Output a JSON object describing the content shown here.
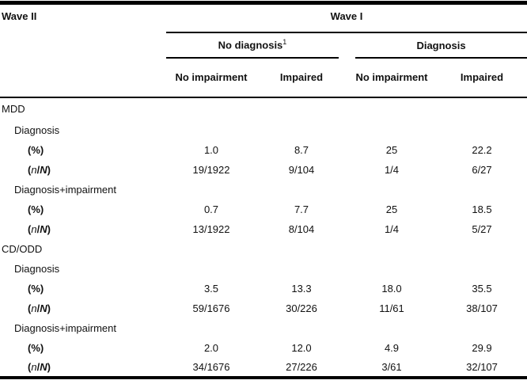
{
  "colors": {
    "text": "#111111",
    "rule": "#000000",
    "background": "#ffffff"
  },
  "table": {
    "stub_header": "Wave II",
    "span_header": "Wave I",
    "groups": [
      {
        "label": "No diagnosis",
        "footnote_marker": "1"
      },
      {
        "label": "Diagnosis",
        "footnote_marker": ""
      }
    ],
    "col_headers": [
      "No impairment",
      "Impaired",
      "No impairment",
      "Impaired"
    ],
    "rows": [
      {
        "label": "MDD",
        "indent": 0,
        "metric": false,
        "math": false,
        "values": [
          "",
          "",
          "",
          ""
        ]
      },
      {
        "label": "Diagnosis",
        "indent": 1,
        "metric": false,
        "math": false,
        "values": [
          "",
          "",
          "",
          ""
        ]
      },
      {
        "label": "(%)",
        "indent": 2,
        "metric": true,
        "math": false,
        "values": [
          "1.0",
          "8.7",
          "25",
          "22.2"
        ]
      },
      {
        "label": "(n/N)",
        "indent": 2,
        "metric": true,
        "math": true,
        "values": [
          "19/1922",
          "9/104",
          "1/4",
          "6/27"
        ]
      },
      {
        "label": "Diagnosis+impairment",
        "indent": 1,
        "metric": false,
        "math": false,
        "values": [
          "",
          "",
          "",
          ""
        ]
      },
      {
        "label": "(%)",
        "indent": 2,
        "metric": true,
        "math": false,
        "values": [
          "0.7",
          "7.7",
          "25",
          "18.5"
        ]
      },
      {
        "label": "(n/N)",
        "indent": 2,
        "metric": true,
        "math": true,
        "values": [
          "13/1922",
          "8/104",
          "1/4",
          "5/27"
        ]
      },
      {
        "label": "CD/ODD",
        "indent": 0,
        "metric": false,
        "math": false,
        "values": [
          "",
          "",
          "",
          ""
        ]
      },
      {
        "label": "Diagnosis",
        "indent": 1,
        "metric": false,
        "math": false,
        "values": [
          "",
          "",
          "",
          ""
        ]
      },
      {
        "label": "(%)",
        "indent": 2,
        "metric": true,
        "math": false,
        "values": [
          "3.5",
          "13.3",
          "18.0",
          "35.5"
        ]
      },
      {
        "label": "(n/N)",
        "indent": 2,
        "metric": true,
        "math": true,
        "values": [
          "59/1676",
          "30/226",
          "11/61",
          "38/107"
        ]
      },
      {
        "label": "Diagnosis+impairment",
        "indent": 1,
        "metric": false,
        "math": false,
        "values": [
          "",
          "",
          "",
          ""
        ]
      },
      {
        "label": "(%)",
        "indent": 2,
        "metric": true,
        "math": false,
        "values": [
          "2.0",
          "12.0",
          "4.9",
          "29.9"
        ]
      },
      {
        "label": "(n/N)",
        "indent": 2,
        "metric": true,
        "math": true,
        "values": [
          "34/1676",
          "27/226",
          "3/61",
          "32/107"
        ]
      }
    ]
  }
}
